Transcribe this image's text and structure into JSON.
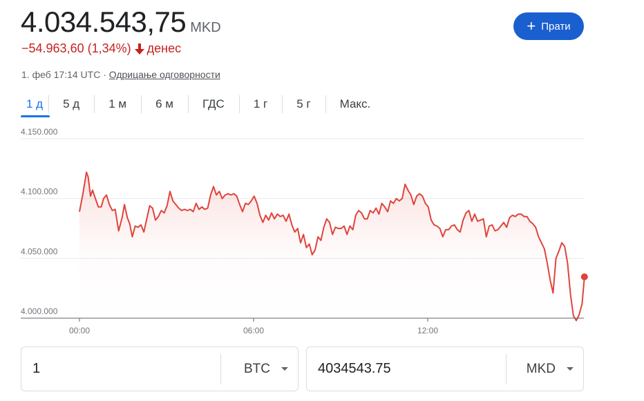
{
  "header": {
    "price": "4.034.543,75",
    "currency": "MKD",
    "change": "−54.963,60 (1,34%)",
    "change_period": "денес",
    "timestamp": "1. феб 17:14 UTC · ",
    "disclaimer": "Одрицање одговорности",
    "follow_label": "Прати",
    "follow_icon": "plus-icon",
    "down_icon": "arrow-down-icon"
  },
  "tabs": [
    {
      "label": "1 д",
      "active": true
    },
    {
      "label": "5 д"
    },
    {
      "label": "1 м"
    },
    {
      "label": "6 м"
    },
    {
      "label": "ГДС"
    },
    {
      "label": "1 г"
    },
    {
      "label": "5 г"
    },
    {
      "label": "Макс."
    }
  ],
  "colors": {
    "line": "#e0433b",
    "negative": "#c5221f",
    "accent": "#1a73e8",
    "button": "#1a5fd0"
  },
  "chart_data": {
    "type": "line",
    "y_ticks": [
      4000000,
      4050000,
      4100000,
      4150000
    ],
    "y_tick_labels": [
      "4.000.000",
      "4.050.000",
      "4.100.000",
      "4.150.000"
    ],
    "x_ticks": [
      "00:00",
      "06:00",
      "12:00"
    ],
    "ylim": [
      4000000,
      4150000
    ],
    "x_range_hours": [
      0,
      17.4
    ],
    "grid": true,
    "series": [
      {
        "values": [
          [
            0.0,
            4089000
          ],
          [
            0.12,
            4104000
          ],
          [
            0.24,
            4122000
          ],
          [
            0.3,
            4118000
          ],
          [
            0.38,
            4102000
          ],
          [
            0.45,
            4107000
          ],
          [
            0.55,
            4100000
          ],
          [
            0.65,
            4093000
          ],
          [
            0.75,
            4093000
          ],
          [
            0.83,
            4100000
          ],
          [
            0.93,
            4103000
          ],
          [
            1.03,
            4095000
          ],
          [
            1.13,
            4090000
          ],
          [
            1.23,
            4091000
          ],
          [
            1.35,
            4073000
          ],
          [
            1.47,
            4084000
          ],
          [
            1.55,
            4095000
          ],
          [
            1.65,
            4084000
          ],
          [
            1.73,
            4079000
          ],
          [
            1.82,
            4068000
          ],
          [
            1.92,
            4077000
          ],
          [
            2.02,
            4076000
          ],
          [
            2.12,
            4078000
          ],
          [
            2.22,
            4072000
          ],
          [
            2.32,
            4083000
          ],
          [
            2.42,
            4094000
          ],
          [
            2.52,
            4092000
          ],
          [
            2.62,
            4082000
          ],
          [
            2.72,
            4085000
          ],
          [
            2.82,
            4090000
          ],
          [
            2.92,
            4088000
          ],
          [
            3.02,
            4094000
          ],
          [
            3.12,
            4106000
          ],
          [
            3.22,
            4098000
          ],
          [
            3.32,
            4095000
          ],
          [
            3.42,
            4092000
          ],
          [
            3.52,
            4090000
          ],
          [
            3.62,
            4091000
          ],
          [
            3.72,
            4090000
          ],
          [
            3.82,
            4091000
          ],
          [
            3.92,
            4089000
          ],
          [
            4.02,
            4096000
          ],
          [
            4.12,
            4091000
          ],
          [
            4.22,
            4093000
          ],
          [
            4.32,
            4091000
          ],
          [
            4.42,
            4092000
          ],
          [
            4.52,
            4103000
          ],
          [
            4.62,
            4110000
          ],
          [
            4.72,
            4103000
          ],
          [
            4.82,
            4106000
          ],
          [
            4.92,
            4100000
          ],
          [
            5.02,
            4103000
          ],
          [
            5.12,
            4104000
          ],
          [
            5.22,
            4103000
          ],
          [
            5.32,
            4104000
          ],
          [
            5.42,
            4102000
          ],
          [
            5.52,
            4095000
          ],
          [
            5.62,
            4089000
          ],
          [
            5.72,
            4096000
          ],
          [
            5.82,
            4095000
          ],
          [
            5.92,
            4098000
          ],
          [
            6.02,
            4102000
          ],
          [
            6.12,
            4096000
          ],
          [
            6.22,
            4086000
          ],
          [
            6.32,
            4080000
          ],
          [
            6.42,
            4086000
          ],
          [
            6.52,
            4082000
          ],
          [
            6.62,
            4088000
          ],
          [
            6.72,
            4083000
          ],
          [
            6.82,
            4087000
          ],
          [
            6.92,
            4085000
          ],
          [
            7.02,
            4086000
          ],
          [
            7.12,
            4081000
          ],
          [
            7.22,
            4087000
          ],
          [
            7.32,
            4078000
          ],
          [
            7.42,
            4072000
          ],
          [
            7.52,
            4075000
          ],
          [
            7.62,
            4063000
          ],
          [
            7.72,
            4070000
          ],
          [
            7.82,
            4059000
          ],
          [
            7.92,
            4062000
          ],
          [
            8.02,
            4053000
          ],
          [
            8.12,
            4057000
          ],
          [
            8.22,
            4068000
          ],
          [
            8.32,
            4065000
          ],
          [
            8.42,
            4076000
          ],
          [
            8.52,
            4083000
          ],
          [
            8.62,
            4080000
          ],
          [
            8.72,
            4070000
          ],
          [
            8.82,
            4076000
          ],
          [
            8.92,
            4075000
          ],
          [
            9.02,
            4075000
          ],
          [
            9.12,
            4077000
          ],
          [
            9.22,
            4070000
          ],
          [
            9.32,
            4077000
          ],
          [
            9.42,
            4074000
          ],
          [
            9.52,
            4086000
          ],
          [
            9.62,
            4090000
          ],
          [
            9.72,
            4088000
          ],
          [
            9.82,
            4083000
          ],
          [
            9.92,
            4083000
          ],
          [
            10.02,
            4090000
          ],
          [
            10.12,
            4088000
          ],
          [
            10.22,
            4092000
          ],
          [
            10.32,
            4087000
          ],
          [
            10.42,
            4096000
          ],
          [
            10.52,
            4093000
          ],
          [
            10.62,
            4089000
          ],
          [
            10.72,
            4098000
          ],
          [
            10.82,
            4096000
          ],
          [
            10.92,
            4100000
          ],
          [
            11.02,
            4098000
          ],
          [
            11.12,
            4100000
          ],
          [
            11.22,
            4112000
          ],
          [
            11.32,
            4107000
          ],
          [
            11.42,
            4103000
          ],
          [
            11.52,
            4095000
          ],
          [
            11.62,
            4102000
          ],
          [
            11.72,
            4104000
          ],
          [
            11.82,
            4102000
          ],
          [
            11.92,
            4096000
          ],
          [
            12.02,
            4093000
          ],
          [
            12.12,
            4082000
          ],
          [
            12.22,
            4078000
          ],
          [
            12.32,
            4077000
          ],
          [
            12.42,
            4075000
          ],
          [
            12.52,
            4068000
          ],
          [
            12.62,
            4074000
          ],
          [
            12.72,
            4074000
          ],
          [
            12.82,
            4077000
          ],
          [
            12.92,
            4078000
          ],
          [
            13.02,
            4074000
          ],
          [
            13.12,
            4072000
          ],
          [
            13.22,
            4082000
          ],
          [
            13.32,
            4088000
          ],
          [
            13.42,
            4090000
          ],
          [
            13.52,
            4081000
          ],
          [
            13.62,
            4087000
          ],
          [
            13.72,
            4081000
          ],
          [
            13.82,
            4082000
          ],
          [
            13.92,
            4083000
          ],
          [
            14.02,
            4068000
          ],
          [
            14.12,
            4077000
          ],
          [
            14.22,
            4078000
          ],
          [
            14.32,
            4073000
          ],
          [
            14.42,
            4074000
          ],
          [
            14.52,
            4077000
          ],
          [
            14.62,
            4080000
          ],
          [
            14.72,
            4076000
          ],
          [
            14.82,
            4084000
          ],
          [
            14.92,
            4086000
          ],
          [
            15.02,
            4085000
          ],
          [
            15.12,
            4087000
          ],
          [
            15.22,
            4087000
          ],
          [
            15.32,
            4085000
          ],
          [
            15.42,
            4085000
          ],
          [
            15.52,
            4081000
          ],
          [
            15.62,
            4079000
          ],
          [
            15.72,
            4076000
          ],
          [
            15.82,
            4068000
          ],
          [
            15.92,
            4063000
          ],
          [
            16.02,
            4058000
          ],
          [
            16.12,
            4046000
          ],
          [
            16.22,
            4032000
          ],
          [
            16.32,
            4021000
          ],
          [
            16.42,
            4050000
          ],
          [
            16.52,
            4056000
          ],
          [
            16.62,
            4063000
          ],
          [
            16.72,
            4060000
          ],
          [
            16.82,
            4046000
          ],
          [
            16.92,
            4020000
          ],
          [
            17.02,
            4002000
          ],
          [
            17.12,
            3998000
          ]
        ]
      }
    ],
    "current_value": 4034543.75
  },
  "converter": {
    "from_amount": "1",
    "from_currency": "BTC",
    "to_amount": "4034543.75",
    "to_currency": "MKD"
  }
}
